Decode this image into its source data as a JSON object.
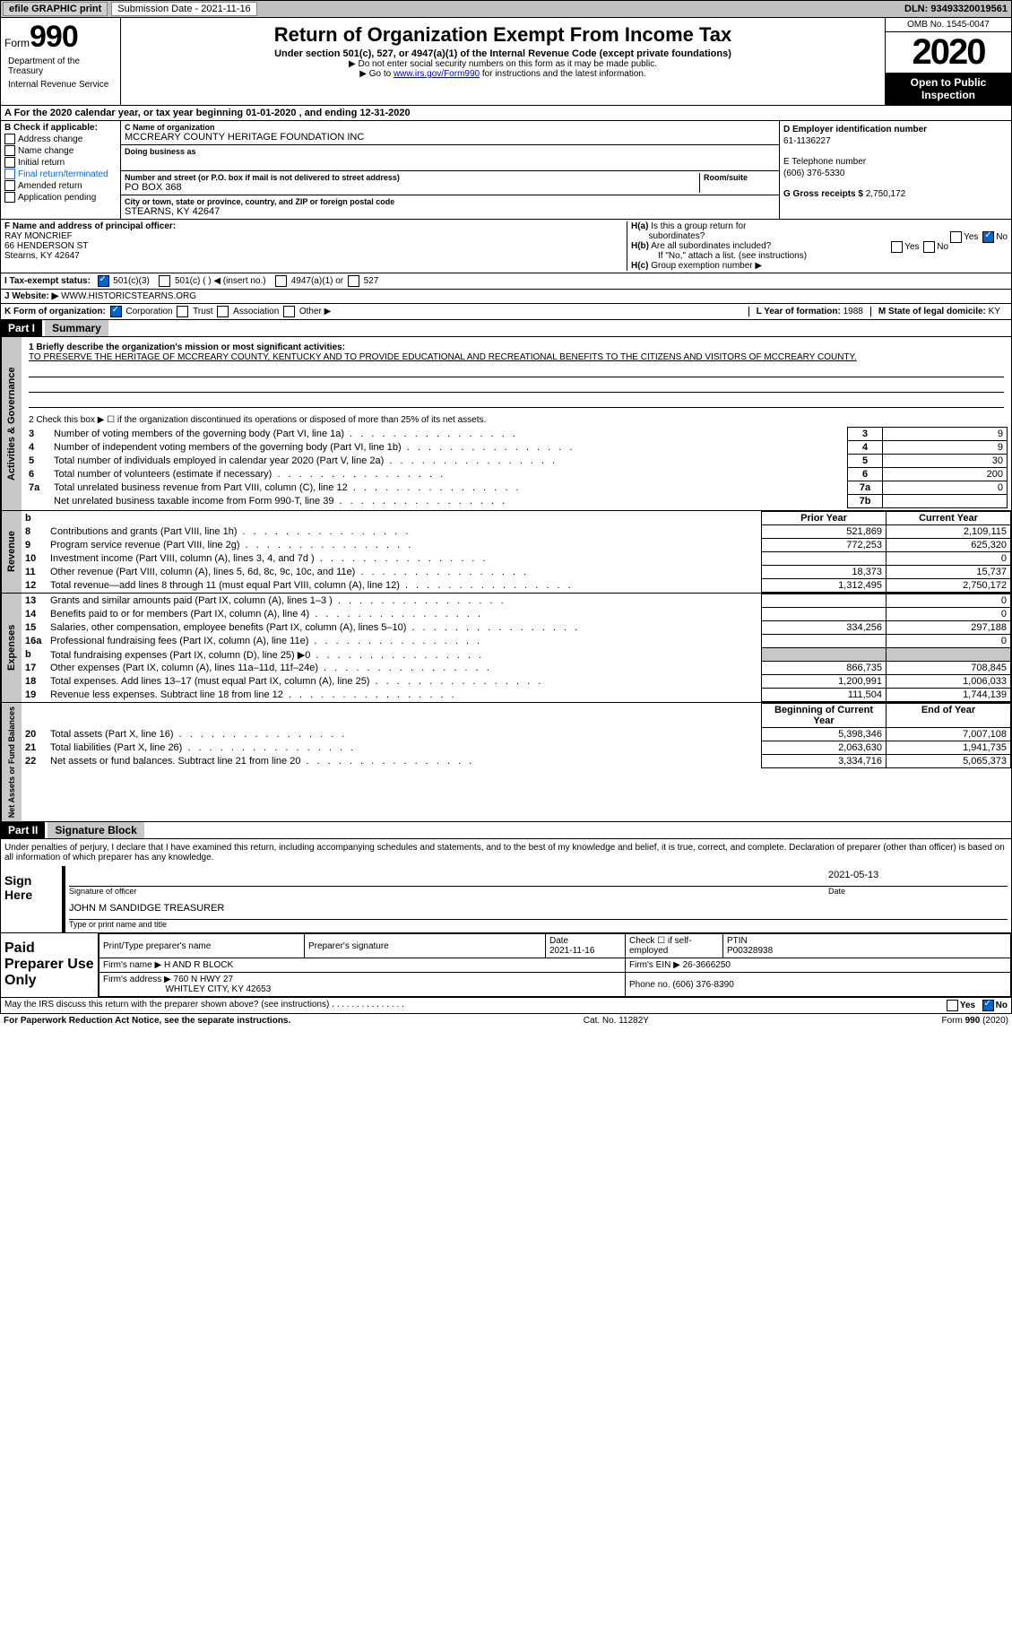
{
  "header_bar": {
    "efile": "efile GRAPHIC print",
    "submission_label": "Submission Date - 2021-11-16",
    "dln": "DLN: 93493320019561"
  },
  "title_block": {
    "form_label": "Form",
    "form_number": "990",
    "title": "Return of Organization Exempt From Income Tax",
    "subtitle": "Under section 501(c), 527, or 4947(a)(1) of the Internal Revenue Code (except private foundations)",
    "note1": "▶ Do not enter social security numbers on this form as it may be made public.",
    "note2_pre": "▶ Go to ",
    "note2_link": "www.irs.gov/Form990",
    "note2_post": " for instructions and the latest information.",
    "dept1": "Department of the Treasury",
    "dept2": "Internal Revenue Service",
    "omb": "OMB No. 1545-0047",
    "year": "2020",
    "open": "Open to Public Inspection"
  },
  "row_a": "A For the 2020 calendar year, or tax year beginning 01-01-2020  , and ending 12-31-2020",
  "col_b": {
    "label": "B Check if applicable:",
    "items": [
      "Address change",
      "Name change",
      "Initial return",
      "Final return/terminated",
      "Amended return",
      "Application pending"
    ]
  },
  "col_c": {
    "name_label": "C Name of organization",
    "name": "MCCREARY COUNTY HERITAGE FOUNDATION INC",
    "dba_label": "Doing business as",
    "addr_label": "Number and street (or P.O. box if mail is not delivered to street address)",
    "addr": "PO BOX 368",
    "room_label": "Room/suite",
    "city_label": "City or town, state or province, country, and ZIP or foreign postal code",
    "city": "STEARNS, KY  42647"
  },
  "col_d": {
    "ein_label": "D Employer identification number",
    "ein": "61-1136227",
    "phone_label": "E Telephone number",
    "phone": "(606) 376-5330",
    "gross_label": "G Gross receipts $",
    "gross": "2,750,172"
  },
  "row_f": {
    "label": "F  Name and address of principal officer:",
    "name": "RAY MONCRIEF",
    "addr1": "66 HENDERSON ST",
    "addr2": "Stearns, KY  42647"
  },
  "row_h": {
    "ha_label": "H(a)  Is this a group return for subordinates?",
    "hb_label": "H(b)  Are all subordinates included?",
    "hb_note": "If \"No,\" attach a list. (see instructions)",
    "hc_label": "H(c)  Group exemption number ▶",
    "yes": "Yes",
    "no": "No"
  },
  "row_i": {
    "label": "I  Tax-exempt status:",
    "opt1": "501(c)(3)",
    "opt2": "501(c) (   ) ◀ (insert no.)",
    "opt3": "4947(a)(1) or",
    "opt4": "527"
  },
  "row_j": {
    "label": "J  Website: ▶",
    "value": "WWW.HISTORICSTEARNS.ORG"
  },
  "row_k": {
    "label": "K Form of organization:",
    "opts": [
      "Corporation",
      "Trust",
      "Association",
      "Other ▶"
    ],
    "l_label": "L Year of formation:",
    "l_val": "1988",
    "m_label": "M State of legal domicile:",
    "m_val": "KY"
  },
  "part1": {
    "header": "Part I",
    "title": "Summary",
    "line1_label": "1  Briefly describe the organization's mission or most significant activities:",
    "mission": "TO PRESERVE THE HERITAGE OF MCCREARY COUNTY, KENTUCKY AND TO PROVIDE EDUCATIONAL AND RECREATIONAL BENEFITS TO THE CITIZENS AND VISITORS OF MCCREARY COUNTY.",
    "line2": "2   Check this box ▶ ☐  if the organization discontinued its operations or disposed of more than 25% of its net assets."
  },
  "governance_label": "Activities & Governance",
  "governance_rows": [
    {
      "num": "3",
      "text": "Number of voting members of the governing body (Part VI, line 1a)",
      "line": "3",
      "val": "9"
    },
    {
      "num": "4",
      "text": "Number of independent voting members of the governing body (Part VI, line 1b)",
      "line": "4",
      "val": "9"
    },
    {
      "num": "5",
      "text": "Total number of individuals employed in calendar year 2020 (Part V, line 2a)",
      "line": "5",
      "val": "30"
    },
    {
      "num": "6",
      "text": "Total number of volunteers (estimate if necessary)",
      "line": "6",
      "val": "200"
    },
    {
      "num": "7a",
      "text": "Total unrelated business revenue from Part VIII, column (C), line 12",
      "line": "7a",
      "val": "0"
    },
    {
      "num": "",
      "text": "Net unrelated business taxable income from Form 990-T, line 39",
      "line": "7b",
      "val": ""
    }
  ],
  "revenue_label": "Revenue",
  "prior_year_header": "Prior Year",
  "current_year_header": "Current Year",
  "revenue_rows": [
    {
      "num": "8",
      "text": "Contributions and grants (Part VIII, line 1h)",
      "prior": "521,869",
      "curr": "2,109,115"
    },
    {
      "num": "9",
      "text": "Program service revenue (Part VIII, line 2g)",
      "prior": "772,253",
      "curr": "625,320"
    },
    {
      "num": "10",
      "text": "Investment income (Part VIII, column (A), lines 3, 4, and 7d )",
      "prior": "",
      "curr": "0"
    },
    {
      "num": "11",
      "text": "Other revenue (Part VIII, column (A), lines 5, 6d, 8c, 9c, 10c, and 11e)",
      "prior": "18,373",
      "curr": "15,737"
    },
    {
      "num": "12",
      "text": "Total revenue—add lines 8 through 11 (must equal Part VIII, column (A), line 12)",
      "prior": "1,312,495",
      "curr": "2,750,172"
    }
  ],
  "expenses_label": "Expenses",
  "expenses_rows": [
    {
      "num": "13",
      "text": "Grants and similar amounts paid (Part IX, column (A), lines 1–3 )",
      "prior": "",
      "curr": "0"
    },
    {
      "num": "14",
      "text": "Benefits paid to or for members (Part IX, column (A), line 4)",
      "prior": "",
      "curr": "0"
    },
    {
      "num": "15",
      "text": "Salaries, other compensation, employee benefits (Part IX, column (A), lines 5–10)",
      "prior": "334,256",
      "curr": "297,188"
    },
    {
      "num": "16a",
      "text": "Professional fundraising fees (Part IX, column (A), line 11e)",
      "prior": "",
      "curr": "0"
    },
    {
      "num": "b",
      "text": "Total fundraising expenses (Part IX, column (D), line 25) ▶0",
      "prior": "grey",
      "curr": "grey"
    },
    {
      "num": "17",
      "text": "Other expenses (Part IX, column (A), lines 11a–11d, 11f–24e)",
      "prior": "866,735",
      "curr": "708,845"
    },
    {
      "num": "18",
      "text": "Total expenses. Add lines 13–17 (must equal Part IX, column (A), line 25)",
      "prior": "1,200,991",
      "curr": "1,006,033"
    },
    {
      "num": "19",
      "text": "Revenue less expenses. Subtract line 18 from line 12",
      "prior": "111,504",
      "curr": "1,744,139"
    }
  ],
  "netassets_label": "Net Assets or Fund Balances",
  "beg_year_header": "Beginning of Current Year",
  "end_year_header": "End of Year",
  "netassets_rows": [
    {
      "num": "20",
      "text": "Total assets (Part X, line 16)",
      "prior": "5,398,346",
      "curr": "7,007,108"
    },
    {
      "num": "21",
      "text": "Total liabilities (Part X, line 26)",
      "prior": "2,063,630",
      "curr": "1,941,735"
    },
    {
      "num": "22",
      "text": "Net assets or fund balances. Subtract line 21 from line 20",
      "prior": "3,334,716",
      "curr": "5,065,373"
    }
  ],
  "part2": {
    "header": "Part II",
    "title": "Signature Block",
    "declaration": "Under penalties of perjury, I declare that I have examined this return, including accompanying schedules and statements, and to the best of my knowledge and belief, it is true, correct, and complete. Declaration of preparer (other than officer) is based on all information of which preparer has any knowledge."
  },
  "sign": {
    "label": "Sign Here",
    "sig_label": "Signature of officer",
    "date": "2021-05-13",
    "date_label": "Date",
    "name": "JOHN M SANDIDGE TREASURER",
    "name_label": "Type or print name and title"
  },
  "preparer": {
    "label": "Paid Preparer Use Only",
    "print_label": "Print/Type preparer's name",
    "sig_label": "Preparer's signature",
    "date_label": "Date",
    "date": "2021-11-16",
    "check_label": "Check ☐ if self-employed",
    "ptin_label": "PTIN",
    "ptin": "P00328938",
    "firm_name_label": "Firm's name    ▶",
    "firm_name": "H AND R BLOCK",
    "firm_ein_label": "Firm's EIN ▶",
    "firm_ein": "26-3666250",
    "firm_addr_label": "Firm's address ▶",
    "firm_addr1": "760 N HWY 27",
    "firm_addr2": "WHITLEY CITY, KY  42653",
    "phone_label": "Phone no.",
    "phone": "(606) 376-8390"
  },
  "discuss": {
    "text": "May the IRS discuss this return with the preparer shown above? (see instructions)",
    "yes": "Yes",
    "no": "No"
  },
  "footer": {
    "left": "For Paperwork Reduction Act Notice, see the separate instructions.",
    "center": "Cat. No. 11282Y",
    "right": "Form 990 (2020)"
  }
}
